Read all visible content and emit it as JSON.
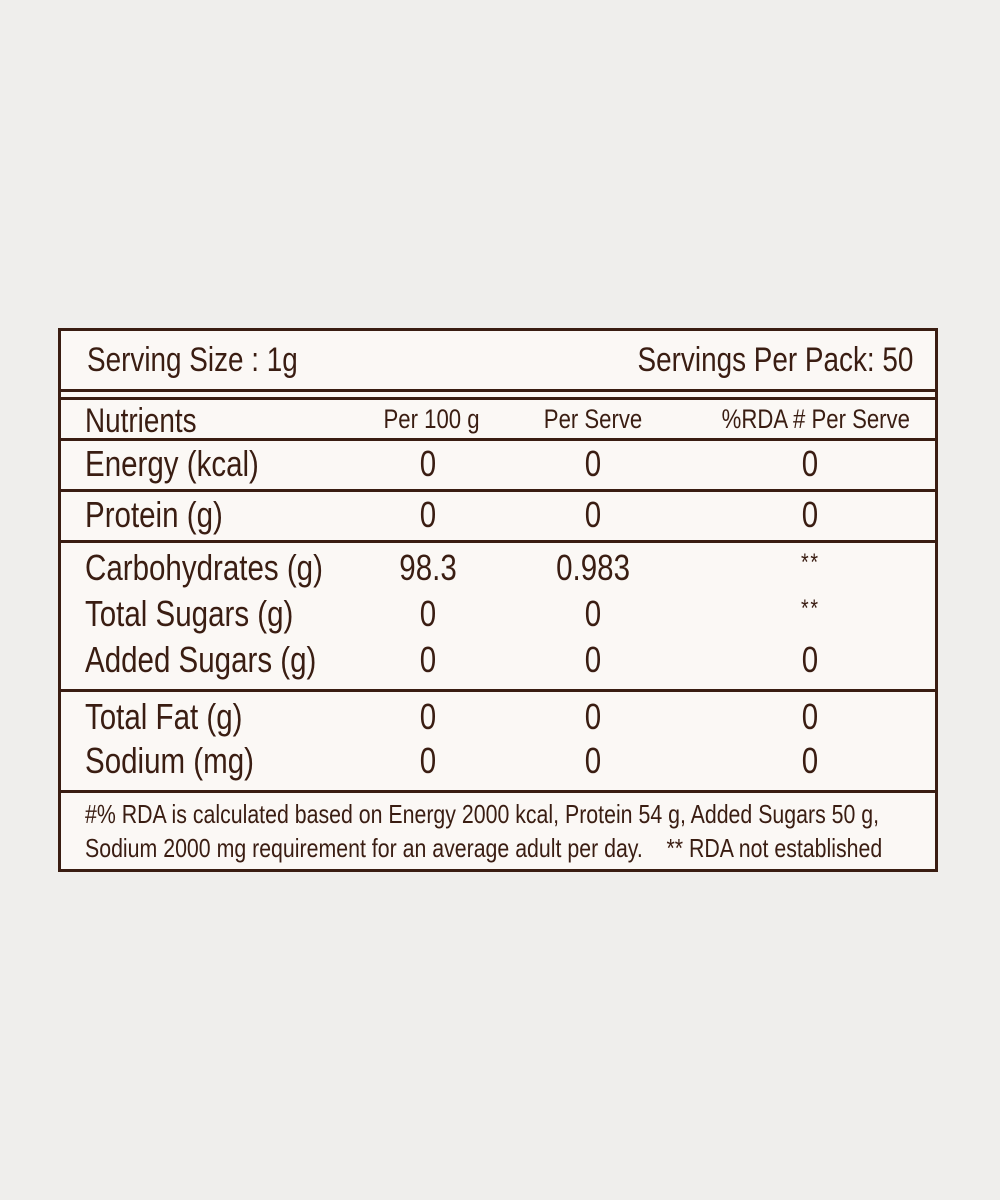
{
  "serving": {
    "size_label": "Serving Size : 1g",
    "per_pack_label": "Servings Per Pack:  50"
  },
  "columns": {
    "nutrients": "Nutrients",
    "per_100g": "Per 100 g",
    "per_serve": "Per Serve",
    "rda": "%RDA # Per Serve"
  },
  "rows": [
    {
      "name": "Energy (kcal)",
      "per_100g": "0",
      "per_serve": "0",
      "rda": "0"
    },
    {
      "name": "Protein (g)",
      "per_100g": "0",
      "per_serve": "0",
      "rda": "0"
    },
    {
      "name": "Carbohydrates (g)",
      "per_100g": "98.3",
      "per_serve": "0.983",
      "rda": "**"
    },
    {
      "name": "Total Sugars (g)",
      "per_100g": "0",
      "per_serve": "0",
      "rda": "**"
    },
    {
      "name": "Added Sugars (g)",
      "per_100g": "0",
      "per_serve": "0",
      "rda": "0"
    },
    {
      "name": "Total Fat (g)",
      "per_100g": "0",
      "per_serve": "0",
      "rda": "0"
    },
    {
      "name": "Sodium (mg)",
      "per_100g": "0",
      "per_serve": "0",
      "rda": "0"
    }
  ],
  "footnote": {
    "line1": "#% RDA is calculated based on Energy 2000 kcal, Protein 54 g, Added Sugars 50 g,",
    "line2": "Sodium 2000 mg requirement for an average adult per day.    ** RDA not established"
  },
  "colors": {
    "ink": "#3a1d12",
    "label_bg": "#fbf8f5",
    "page_bg": "#efeeec"
  }
}
